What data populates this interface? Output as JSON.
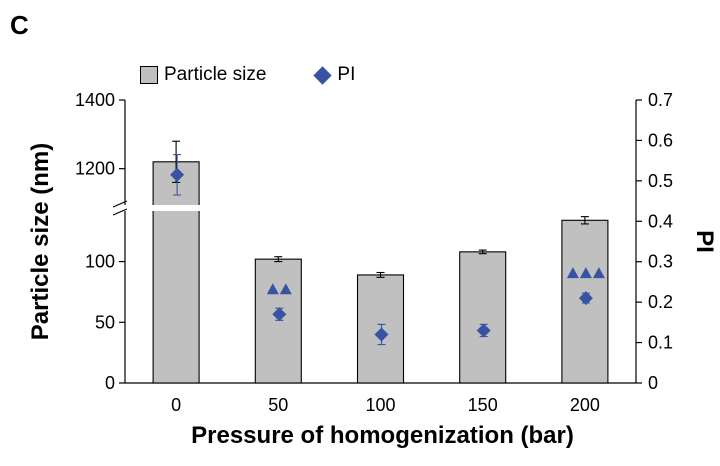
{
  "panel_label": "C",
  "chart_data": {
    "type": "bar",
    "title": "",
    "xlabel": "Pressure of homogenization (bar)",
    "ylabel_left": "Particle size (nm)",
    "ylabel_right": "PI",
    "legend": [
      "Particle size",
      "PI"
    ],
    "legend_position": "top",
    "categories": [
      "0",
      "50",
      "100",
      "150",
      "200"
    ],
    "left_axis_broken": true,
    "left_axis_lower_ticks": [
      "0",
      "50",
      "100"
    ],
    "left_axis_upper_ticks": [
      "1200",
      "1400"
    ],
    "left_axis_lower_range": [
      0,
      140
    ],
    "left_axis_upper_range": [
      1100,
      1400
    ],
    "right_axis_ticks": [
      "0",
      "0.1",
      "0.2",
      "0.3",
      "0.4",
      "0.5",
      "0.6",
      "0.7"
    ],
    "right_axis_range": [
      0,
      0.7
    ],
    "series": [
      {
        "name": "Particle size",
        "kind": "bar",
        "axis": "left",
        "values": [
          1220,
          102,
          89,
          108,
          134
        ],
        "errors": [
          60,
          2,
          2,
          1.5,
          3
        ]
      },
      {
        "name": "PI",
        "kind": "diamond",
        "axis": "right",
        "values": [
          0.515,
          0.17,
          0.12,
          0.13,
          0.21
        ],
        "errors": [
          0.05,
          0.015,
          0.025,
          0.015,
          0.012
        ]
      }
    ],
    "significance_markers": [
      {
        "category": "50",
        "symbol": "triangle",
        "count": 2
      },
      {
        "category": "200",
        "symbol": "triangle",
        "count": 3
      }
    ]
  }
}
